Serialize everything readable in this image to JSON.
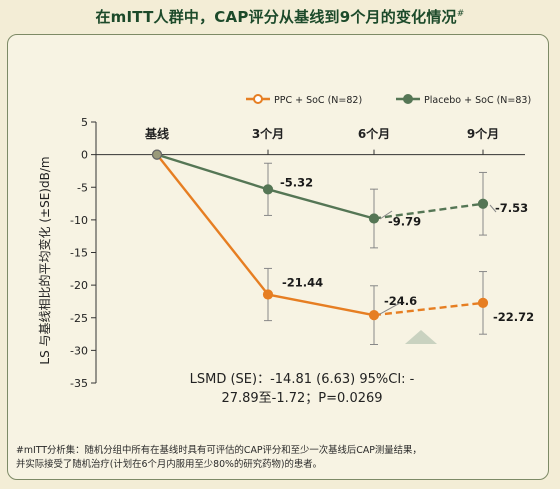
{
  "title": "在mITT人群中，CAP评分从基线到9个月的变化情况",
  "title_mark": "#",
  "chart_data": {
    "type": "line",
    "categories": [
      "基线",
      "3个月",
      "6个月",
      "9个月"
    ],
    "ylabel": "LS 与基线相比的平均变化 (±SE)dB/m",
    "xlabel": "",
    "ylim": [
      -35,
      5
    ],
    "yticks": [
      5,
      0,
      -5,
      -10,
      -15,
      -20,
      -25,
      -30,
      -35
    ],
    "legend_position": "top-right",
    "series": [
      {
        "name": "PPC + SoC (N=82)",
        "color": "#e67e22",
        "values": [
          0,
          -21.44,
          -24.6,
          -22.72
        ],
        "se": [
          0,
          4,
          4.5,
          4.8
        ],
        "labels": [
          "",
          "-21.44",
          "-24.6",
          "-22.72"
        ],
        "dashed_from_index": 2
      },
      {
        "name": "Placebo + SoC (N=83)",
        "color": "#557655",
        "values": [
          0,
          -5.32,
          -9.79,
          -7.53
        ],
        "se": [
          0,
          4,
          4.5,
          4.8
        ],
        "labels": [
          "",
          "-5.32",
          "-9.79",
          "-7.53"
        ],
        "dashed_from_index": 2
      }
    ],
    "annotation": {
      "line1": "LSMD (SE)：-14.81 (6.63) 95%CI: -",
      "line2": "27.89至-1.72；P=0.0269"
    }
  },
  "footnote": {
    "line1": "#mITT分析集：随机分组中所有在基线时具有可评估的CAP评分和至少一次基线后CAP测量结果，",
    "line2": "并实际接受了随机治疗(计划在6个月内服用至少80%的研究药物)的患者。"
  },
  "colors": {
    "title": "#1c4a2a",
    "panel_border": "#7d8a66",
    "background": "#f3edd6",
    "triangle": "#c9d2c0"
  }
}
